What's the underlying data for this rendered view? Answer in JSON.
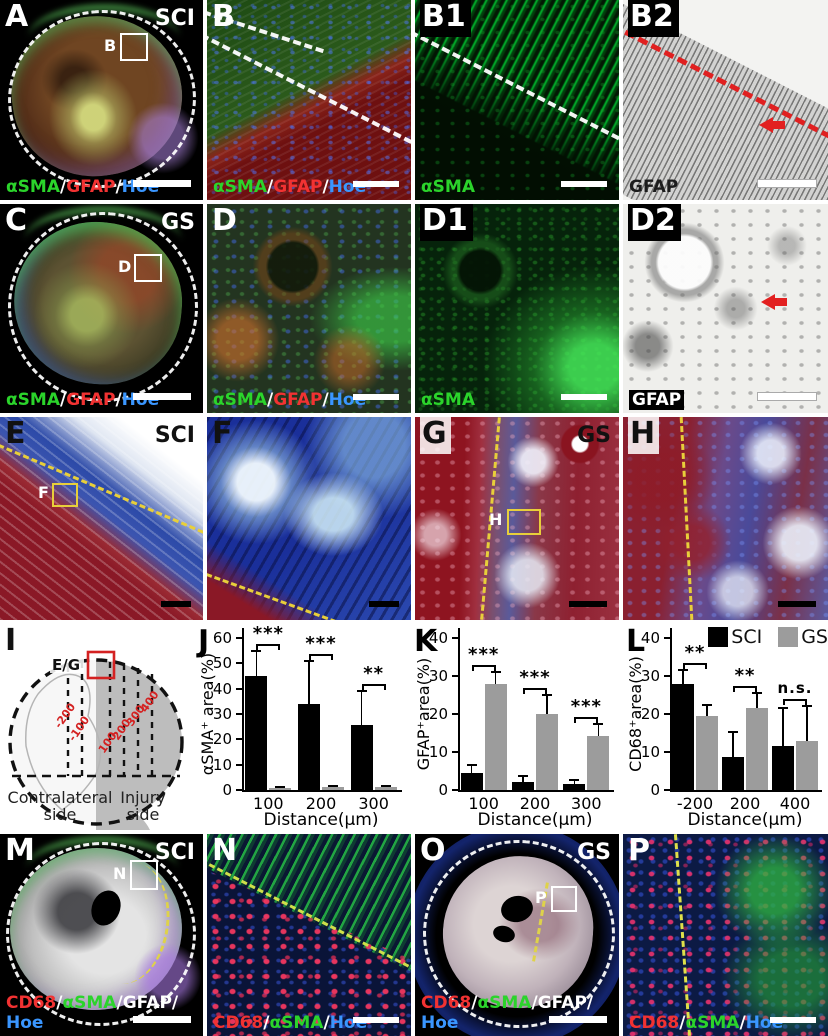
{
  "colors": {
    "green": "#2bd42b",
    "red": "#f23232",
    "blue": "#3a96ff",
    "white": "#ffffff",
    "black": "#1c1c1c",
    "sci": "#000000",
    "gs": "#9c9c9c",
    "dash_yellow": "#e8cf3a",
    "arrow_red": "#e22020"
  },
  "panels": {
    "a": {
      "letter": "A",
      "condition": "SCI",
      "inset_label": "B",
      "stain": [
        {
          "text": "αSMA",
          "color": "green"
        },
        {
          "text": "/",
          "color": "white"
        },
        {
          "text": "GFAP",
          "color": "red"
        },
        {
          "text": "/",
          "color": "white"
        },
        {
          "text": "Hoe",
          "color": "blue"
        }
      ]
    },
    "b": {
      "letter": "B",
      "stain": [
        {
          "text": "αSMA",
          "color": "green"
        },
        {
          "text": "/",
          "color": "white"
        },
        {
          "text": "GFAP",
          "color": "red"
        },
        {
          "text": "/",
          "color": "white"
        },
        {
          "text": "Hoe",
          "color": "blue"
        }
      ]
    },
    "b1": {
      "letter": "B1",
      "stain": [
        {
          "text": "αSMA",
          "color": "green"
        }
      ]
    },
    "b2": {
      "letter": "B2",
      "stain": [
        {
          "text": "GFAP",
          "color": "black"
        }
      ]
    },
    "c": {
      "letter": "C",
      "condition": "GS",
      "inset_label": "D",
      "stain": [
        {
          "text": "αSMA",
          "color": "green"
        },
        {
          "text": "/",
          "color": "white"
        },
        {
          "text": "GFAP",
          "color": "red"
        },
        {
          "text": "/",
          "color": "white"
        },
        {
          "text": "Hoe",
          "color": "blue"
        }
      ]
    },
    "d": {
      "letter": "D",
      "stain": [
        {
          "text": "αSMA",
          "color": "green"
        },
        {
          "text": "/",
          "color": "white"
        },
        {
          "text": "GFAP",
          "color": "red"
        },
        {
          "text": "/",
          "color": "white"
        },
        {
          "text": "Hoe",
          "color": "blue"
        }
      ]
    },
    "d1": {
      "letter": "D1",
      "stain": [
        {
          "text": "αSMA",
          "color": "green"
        }
      ]
    },
    "d2": {
      "letter": "D2",
      "stain": [
        {
          "text": "GFAP",
          "color": "white"
        }
      ]
    },
    "e": {
      "letter": "E",
      "condition": "SCI",
      "inset_label": "F"
    },
    "f": {
      "letter": "F"
    },
    "g": {
      "letter": "G",
      "condition": "GS",
      "inset_label": "H"
    },
    "h": {
      "letter": "H"
    },
    "m": {
      "letter": "M",
      "condition": "SCI",
      "inset_label": "N",
      "stain": [
        {
          "text": "CD68",
          "color": "red"
        },
        {
          "text": "/",
          "color": "white"
        },
        {
          "text": "αSMA",
          "color": "green"
        },
        {
          "text": "/",
          "color": "white"
        },
        {
          "text": "GFAP",
          "color": "white"
        },
        {
          "text": "/",
          "color": "white"
        }
      ],
      "stain2": [
        {
          "text": "Hoe",
          "color": "blue"
        }
      ]
    },
    "n": {
      "letter": "N",
      "stain": [
        {
          "text": "CD68",
          "color": "red"
        },
        {
          "text": "/",
          "color": "white"
        },
        {
          "text": "αSMA",
          "color": "green"
        },
        {
          "text": "/",
          "color": "white"
        },
        {
          "text": "Hoe",
          "color": "blue"
        }
      ]
    },
    "o": {
      "letter": "O",
      "condition": "GS",
      "inset_label": "P",
      "stain": [
        {
          "text": "CD68",
          "color": "red"
        },
        {
          "text": "/",
          "color": "white"
        },
        {
          "text": "αSMA",
          "color": "green"
        },
        {
          "text": "/",
          "color": "white"
        },
        {
          "text": "GFAP",
          "color": "white"
        },
        {
          "text": "/",
          "color": "white"
        }
      ],
      "stain2": [
        {
          "text": "Hoe",
          "color": "blue"
        }
      ]
    },
    "p": {
      "letter": "P",
      "stain": [
        {
          "text": "CD68",
          "color": "red"
        },
        {
          "text": "/",
          "color": "white"
        },
        {
          "text": "αSMA",
          "color": "green"
        },
        {
          "text": "/",
          "color": "white"
        },
        {
          "text": "Hoe",
          "color": "blue"
        }
      ]
    }
  },
  "diagram": {
    "letter": "I",
    "box_label": "E/G",
    "distance_labels": [
      "-200",
      "-100",
      "100",
      "200",
      "300",
      "400"
    ],
    "left_label_1": "Contralateral",
    "left_label_2": "side",
    "right_label_1": "Injury",
    "right_label_2": "side"
  },
  "chart_data": [
    {
      "type": "bar",
      "letter": "J",
      "ylabel": "αSMA⁺ area(%)",
      "xlabel": "Distance(μm)",
      "ylim": [
        0,
        60
      ],
      "yticks": [
        0,
        10,
        20,
        30,
        40,
        50,
        60
      ],
      "categories": [
        "100",
        "200",
        "300"
      ],
      "series": [
        {
          "name": "SCI",
          "color": "#000000",
          "values": [
            45,
            34,
            25.5
          ],
          "errors": [
            10,
            17,
            13.5
          ]
        },
        {
          "name": "GS",
          "color": "#9c9c9c",
          "values": [
            0.8,
            1.2,
            1.2
          ],
          "errors": [
            0.4,
            0.5,
            0.5
          ]
        }
      ],
      "sig": [
        "***",
        "***",
        "**"
      ],
      "legend": false
    },
    {
      "type": "bar",
      "letter": "K",
      "ylabel": "GFAP⁺area(%)",
      "xlabel": "Distance(μm)",
      "ylim": [
        0,
        40
      ],
      "yticks": [
        0,
        10,
        20,
        30,
        40
      ],
      "categories": [
        "100",
        "200",
        "300"
      ],
      "series": [
        {
          "name": "SCI",
          "color": "#000000",
          "values": [
            4.5,
            2.2,
            1.6
          ],
          "errors": [
            2,
            1.4,
            1
          ]
        },
        {
          "name": "GS",
          "color": "#9c9c9c",
          "values": [
            28,
            20,
            14.3
          ],
          "errors": [
            3,
            5,
            3.2
          ]
        }
      ],
      "sig": [
        "***",
        "***",
        "***"
      ],
      "legend": false
    },
    {
      "type": "bar",
      "letter": "L",
      "ylabel": "CD68⁺area(%)",
      "xlabel": "Distance(μm)",
      "ylim": [
        0,
        40
      ],
      "yticks": [
        0,
        10,
        20,
        30,
        40
      ],
      "categories": [
        "-200",
        "200",
        "400"
      ],
      "series": [
        {
          "name": "SCI",
          "color": "#000000",
          "values": [
            28,
            8.8,
            11.5
          ],
          "errors": [
            3.5,
            6.4,
            10
          ]
        },
        {
          "name": "GS",
          "color": "#9c9c9c",
          "values": [
            19.5,
            21.5,
            13
          ],
          "errors": [
            3,
            4,
            9
          ]
        }
      ],
      "sig": [
        "**",
        "**",
        "n.s."
      ],
      "legend": true
    }
  ]
}
